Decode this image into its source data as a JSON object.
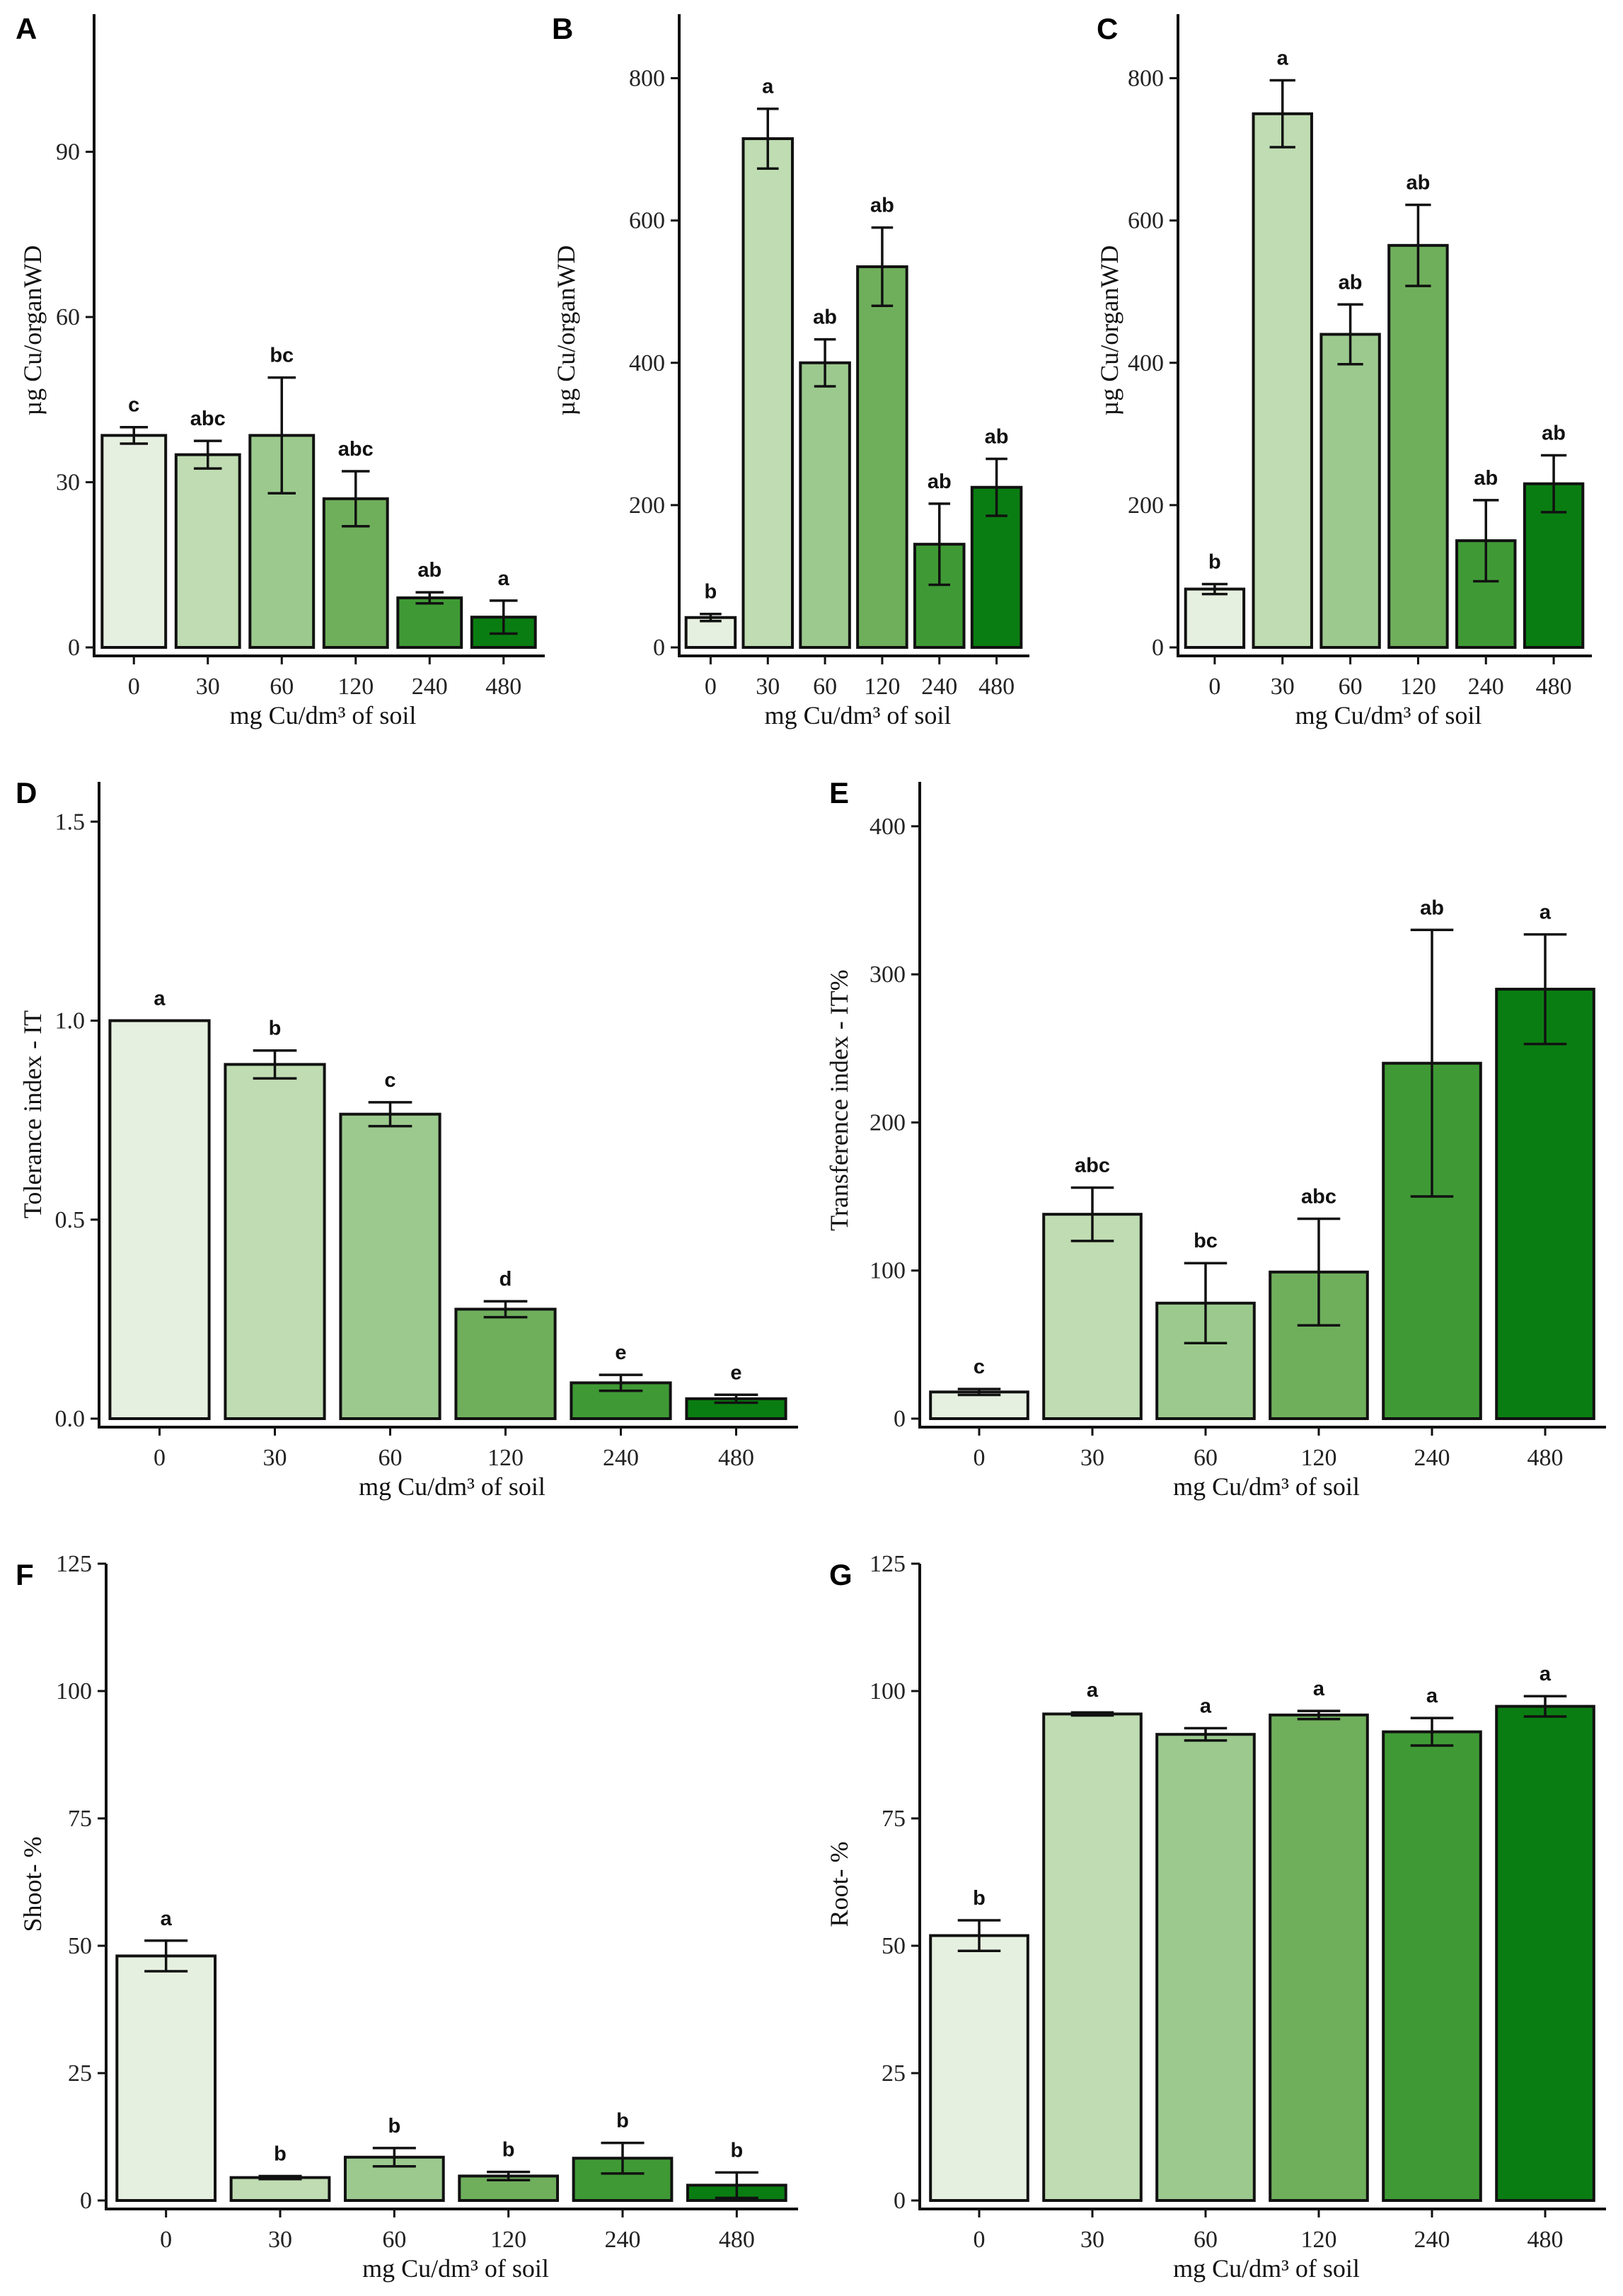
{
  "figure": {
    "category_colors": [
      "#e6f0e0",
      "#bfdcb2",
      "#9cca8e",
      "#6faf5c",
      "#3f9a35",
      "#0a7d12"
    ],
    "xlabel_common": "mg Cu/dm³ of soil"
  },
  "chart_data": [
    {
      "id": "A",
      "panel": "A",
      "type": "bar",
      "categories": [
        "0",
        "30",
        "60",
        "120",
        "240",
        "480"
      ],
      "values": [
        38.5,
        35,
        38.5,
        27,
        9,
        5.5
      ],
      "errors": [
        1.5,
        2.5,
        10.5,
        5,
        1,
        3
      ],
      "labels": [
        "c",
        "abc",
        "bc",
        "abc",
        "ab",
        "a"
      ],
      "xlabel": "mg Cu/dm³ of soil",
      "ylabel": "µg Cu/organWD",
      "ylim": [
        0,
        115
      ],
      "yticks": [
        0,
        30,
        60,
        90
      ]
    },
    {
      "id": "B",
      "panel": "B",
      "type": "bar",
      "categories": [
        "0",
        "30",
        "60",
        "120",
        "240",
        "480"
      ],
      "values": [
        42,
        715,
        400,
        535,
        145,
        225
      ],
      "errors": [
        5,
        42,
        33,
        55,
        57,
        40
      ],
      "labels": [
        "b",
        "a",
        "ab",
        "ab",
        "ab",
        "ab"
      ],
      "xlabel": "mg Cu/dm³ of soil",
      "ylabel": "µg Cu/organWD",
      "ylim": [
        0,
        890
      ],
      "yticks": [
        0,
        200,
        400,
        600,
        800
      ]
    },
    {
      "id": "C",
      "panel": "C",
      "type": "bar",
      "categories": [
        "0",
        "30",
        "60",
        "120",
        "240",
        "480"
      ],
      "values": [
        82,
        750,
        440,
        565,
        150,
        230
      ],
      "errors": [
        7,
        47,
        42,
        57,
        57,
        40
      ],
      "labels": [
        "b",
        "a",
        "ab",
        "ab",
        "ab",
        "ab"
      ],
      "xlabel": "mg Cu/dm³ of soil",
      "ylabel": "µg Cu/organWD",
      "ylim": [
        0,
        890
      ],
      "yticks": [
        0,
        200,
        400,
        600,
        800
      ]
    },
    {
      "id": "D",
      "panel": "D",
      "type": "bar",
      "categories": [
        "0",
        "30",
        "60",
        "120",
        "240",
        "480"
      ],
      "values": [
        1.0,
        0.89,
        0.765,
        0.275,
        0.09,
        0.05
      ],
      "errors": [
        0,
        0.035,
        0.03,
        0.02,
        0.02,
        0.01
      ],
      "labels": [
        "a",
        "b",
        "c",
        "d",
        "e",
        "e"
      ],
      "xlabel": "mg Cu/dm³ of soil",
      "ylabel": "Tolerance index - IT",
      "ylim": [
        0,
        1.6
      ],
      "yticks": [
        0.0,
        0.5,
        1.0,
        1.5
      ]
    },
    {
      "id": "E",
      "panel": "E",
      "type": "bar",
      "categories": [
        "0",
        "30",
        "60",
        "120",
        "240",
        "480"
      ],
      "values": [
        18,
        138,
        78,
        99,
        240,
        290
      ],
      "errors": [
        2,
        18,
        27,
        36,
        90,
        37
      ],
      "labels": [
        "c",
        "abc",
        "bc",
        "abc",
        "ab",
        "a"
      ],
      "xlabel": "mg Cu/dm³ of soil",
      "ylabel": "Transference index - IT%",
      "ylim": [
        0,
        430
      ],
      "yticks": [
        0,
        100,
        200,
        300,
        400
      ]
    },
    {
      "id": "F",
      "panel": "F",
      "type": "bar",
      "categories": [
        "0",
        "30",
        "60",
        "120",
        "240",
        "480"
      ],
      "values": [
        48,
        4.5,
        8.5,
        4.8,
        8.3,
        3
      ],
      "errors": [
        3,
        0.3,
        1.8,
        0.8,
        3,
        2.5
      ],
      "labels": [
        "a",
        "b",
        "b",
        "b",
        "b",
        "b"
      ],
      "xlabel": "mg Cu/dm³ of soil",
      "ylabel": "Shoot- %",
      "ylim": [
        0,
        125
      ],
      "yticks": [
        0,
        25,
        50,
        75,
        100,
        125
      ]
    },
    {
      "id": "G",
      "panel": "G",
      "type": "bar",
      "categories": [
        "0",
        "30",
        "60",
        "120",
        "240",
        "480"
      ],
      "values": [
        52,
        95.5,
        91.5,
        95.3,
        92,
        97
      ],
      "errors": [
        3,
        0.3,
        1.2,
        0.8,
        2.7,
        2
      ],
      "labels": [
        "b",
        "a",
        "a",
        "a",
        "a",
        "a"
      ],
      "xlabel": "mg Cu/dm³ of soil",
      "ylabel": "Root- %",
      "ylim": [
        0,
        125
      ],
      "yticks": [
        0,
        25,
        50,
        75,
        100,
        125
      ]
    }
  ]
}
